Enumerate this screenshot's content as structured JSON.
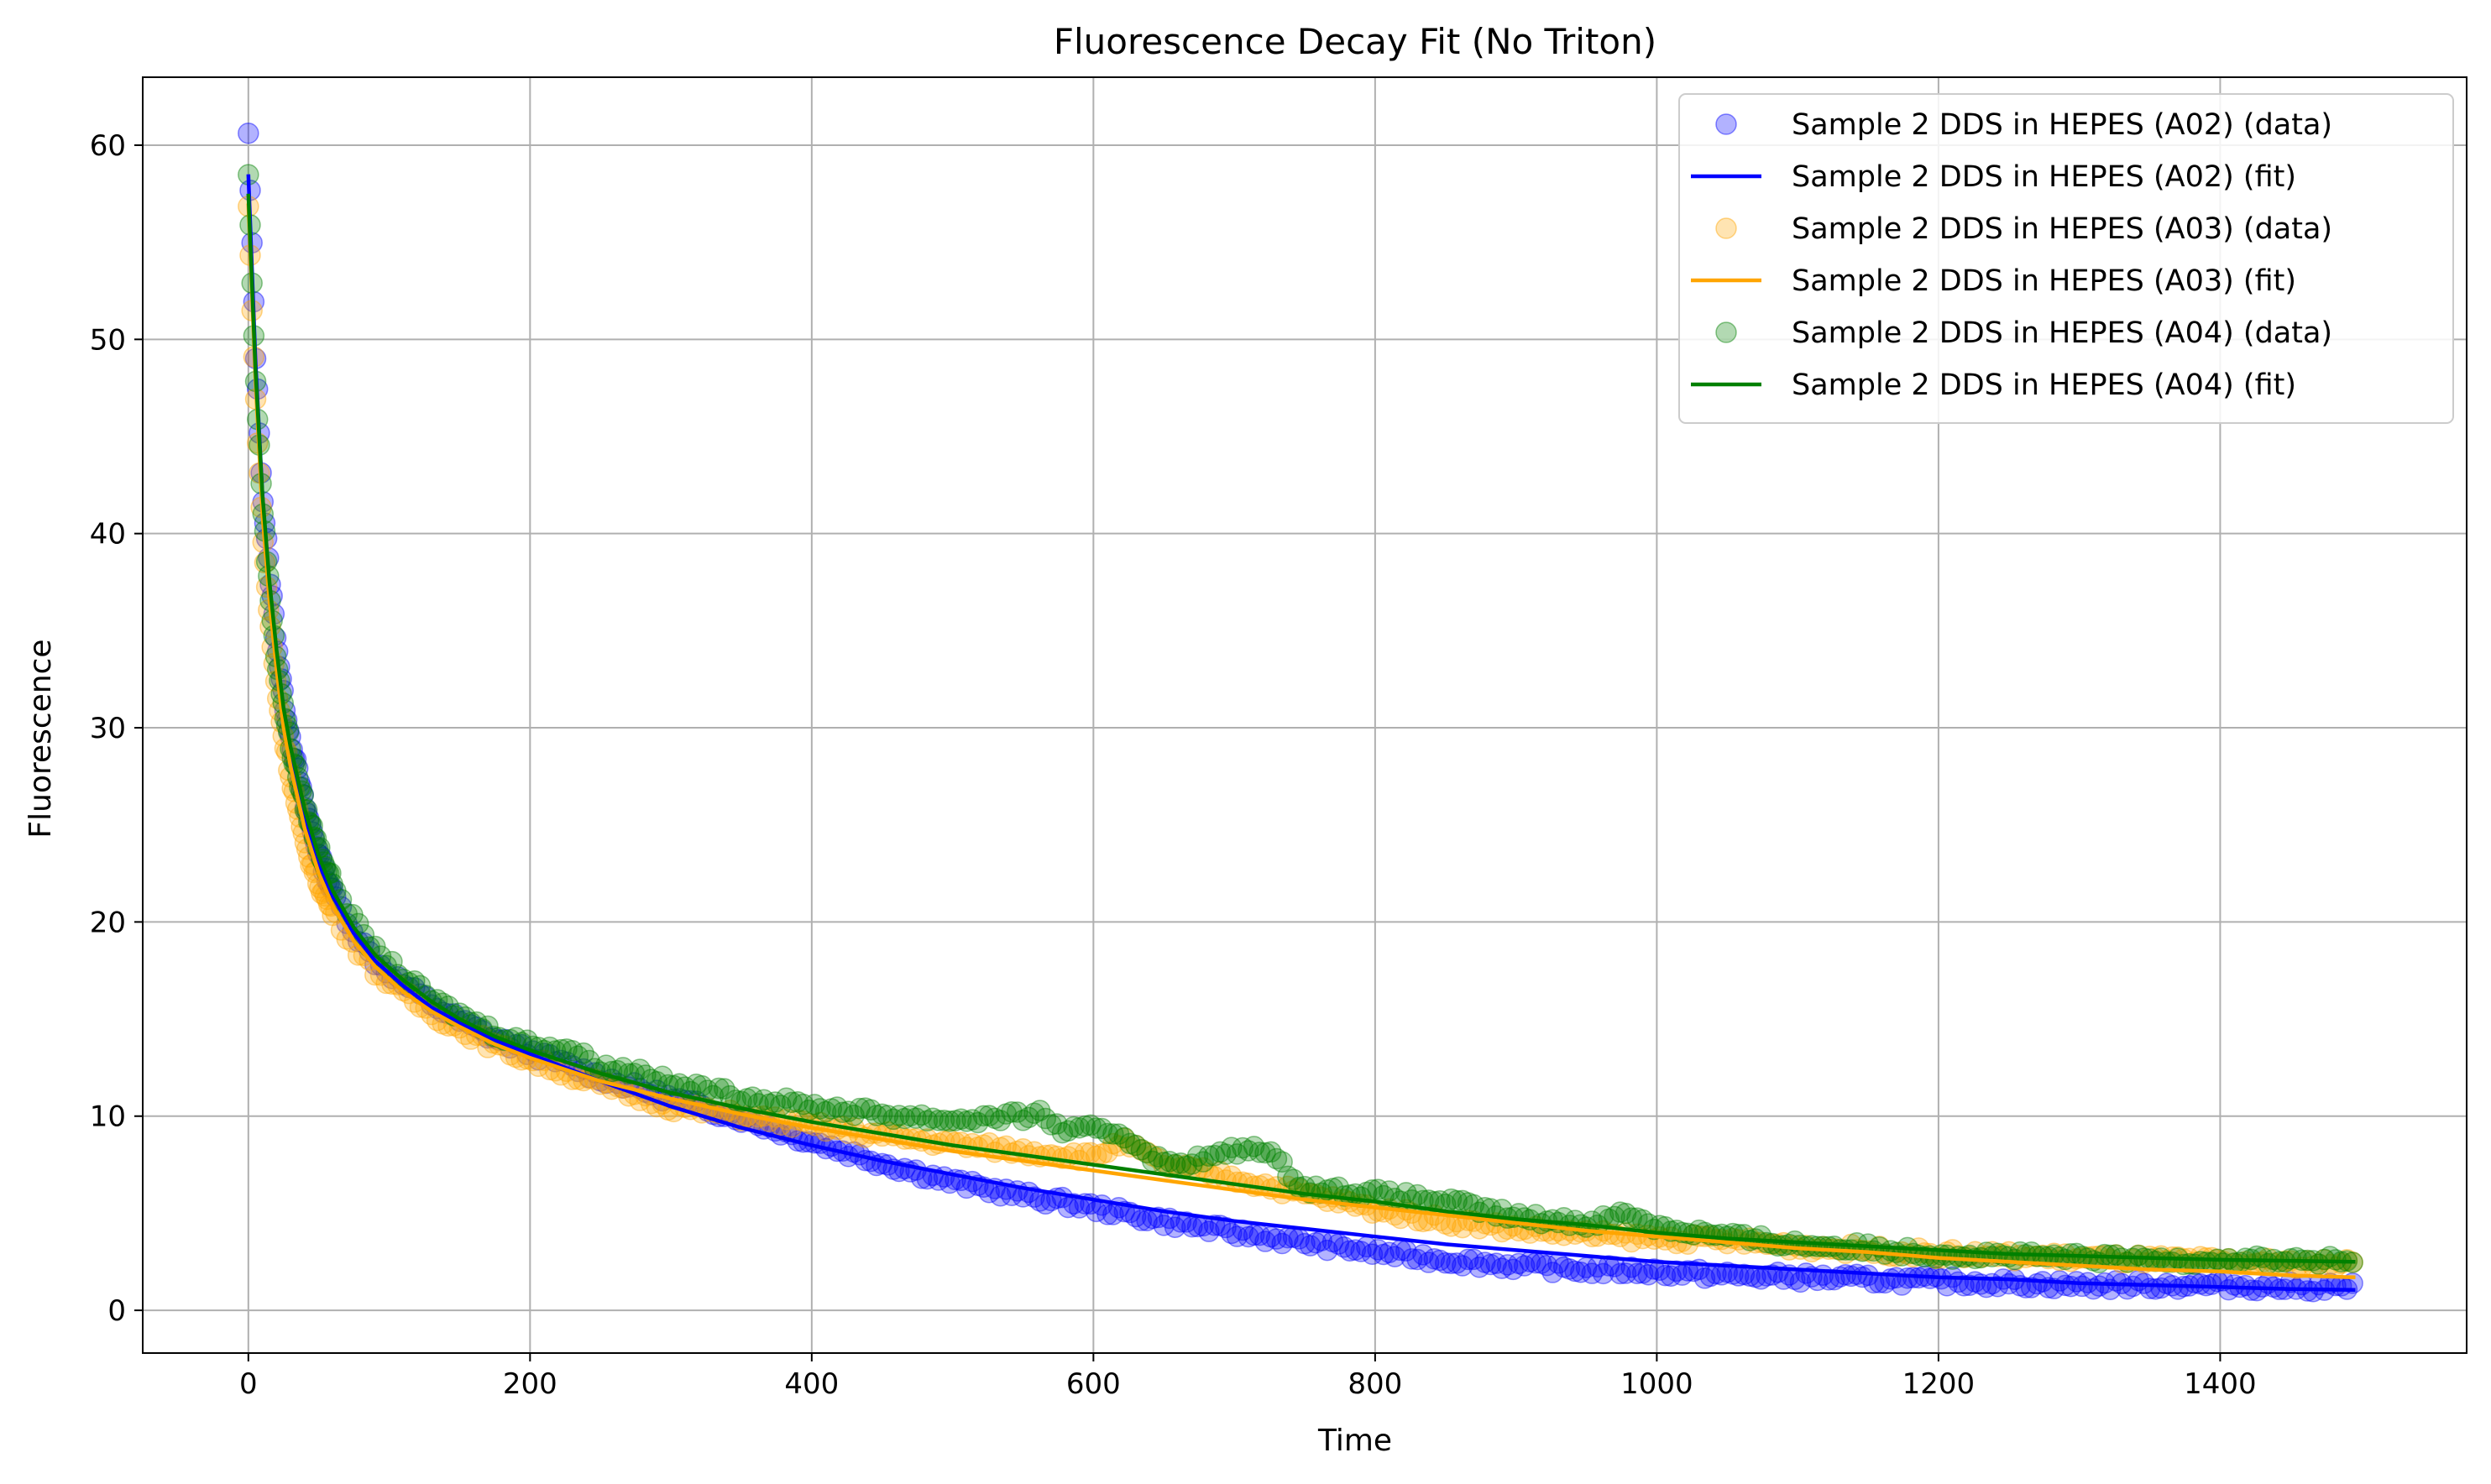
{
  "chart_data": {
    "type": "scatter",
    "title": "Fluorescence Decay Fit (No Triton)",
    "xlabel": "Time",
    "ylabel": "Fluorescence",
    "xlim": [
      -75,
      1575
    ],
    "ylim": [
      -2.2,
      63.5
    ],
    "xticks": [
      0,
      200,
      400,
      600,
      800,
      1000,
      1200,
      1400
    ],
    "yticks": [
      0,
      10,
      20,
      30,
      40,
      50,
      60
    ],
    "grid": true,
    "legend_position": "top-right",
    "x_range": [
      0,
      1496
    ],
    "series": [
      {
        "name": "Sample 2 DDS in HEPES (A02) (data)",
        "kind": "scatter",
        "color": "#0000ff",
        "x": [
          0,
          5,
          10,
          15,
          20,
          25,
          30,
          40,
          50,
          60,
          75,
          90,
          110,
          130,
          150,
          175,
          200,
          250,
          300,
          350,
          400,
          450,
          500,
          550,
          600,
          650,
          700,
          750,
          800,
          850,
          900,
          950,
          1000,
          1050,
          1100,
          1150,
          1200,
          1250,
          1300,
          1350,
          1400,
          1450,
          1496
        ],
        "y": [
          60.5,
          49.5,
          42.0,
          38.0,
          34.5,
          31.5,
          29.5,
          26.0,
          23.5,
          21.5,
          19.5,
          18.0,
          16.8,
          15.8,
          14.9,
          14.0,
          13.3,
          12.0,
          10.9,
          9.9,
          8.7,
          7.6,
          6.6,
          5.9,
          5.3,
          4.6,
          4.0,
          3.5,
          3.0,
          2.6,
          2.3,
          2.1,
          2.0,
          1.8,
          1.7,
          1.6,
          1.5,
          1.4,
          1.3,
          1.3,
          1.3,
          1.2,
          1.2
        ]
      },
      {
        "name": "Sample 2 DDS in HEPES (A02) (fit)",
        "kind": "line",
        "color": "#0000ff",
        "x": [
          0,
          5,
          10,
          15,
          20,
          25,
          30,
          40,
          50,
          60,
          75,
          90,
          110,
          130,
          150,
          175,
          200,
          250,
          300,
          350,
          400,
          450,
          500,
          550,
          600,
          650,
          700,
          750,
          800,
          850,
          900,
          950,
          1000,
          1050,
          1100,
          1150,
          1200,
          1250,
          1300,
          1350,
          1400,
          1450,
          1496
        ],
        "y": [
          58.5,
          49.0,
          42.0,
          37.0,
          33.5,
          30.5,
          28.5,
          25.5,
          23.0,
          21.3,
          19.4,
          18.0,
          16.7,
          15.6,
          14.8,
          13.9,
          13.2,
          11.8,
          10.5,
          9.4,
          8.5,
          7.7,
          7.0,
          6.3,
          5.7,
          5.1,
          4.6,
          4.2,
          3.8,
          3.4,
          3.1,
          2.8,
          2.5,
          2.3,
          2.1,
          1.9,
          1.7,
          1.6,
          1.4,
          1.3,
          1.2,
          1.1,
          1.05
        ]
      },
      {
        "name": "Sample 2 DDS in HEPES (A03) (data)",
        "kind": "scatter",
        "color": "#ffa500",
        "x": [
          0,
          5,
          10,
          15,
          20,
          25,
          30,
          40,
          50,
          60,
          75,
          90,
          110,
          130,
          150,
          175,
          200,
          250,
          300,
          350,
          400,
          450,
          500,
          550,
          600,
          620,
          650,
          700,
          750,
          800,
          850,
          900,
          950,
          1000,
          1050,
          1100,
          1150,
          1200,
          1250,
          1300,
          1350,
          1400,
          1450,
          1496
        ],
        "y": [
          56.8,
          47.0,
          40.0,
          35.5,
          32.0,
          29.5,
          27.5,
          24.0,
          22.0,
          20.5,
          18.8,
          17.5,
          16.3,
          15.3,
          14.5,
          13.6,
          12.9,
          11.6,
          10.5,
          10.0,
          9.5,
          9.0,
          8.6,
          8.2,
          7.9,
          8.7,
          7.5,
          6.8,
          6.0,
          5.2,
          4.6,
          4.2,
          3.9,
          3.7,
          3.6,
          3.3,
          3.1,
          2.9,
          2.8,
          2.7,
          2.6,
          2.5,
          2.4,
          2.4
        ]
      },
      {
        "name": "Sample 2 DDS in HEPES (A03) (fit)",
        "kind": "line",
        "color": "#ffa500",
        "x": [
          0,
          5,
          10,
          15,
          20,
          25,
          30,
          40,
          50,
          60,
          75,
          90,
          110,
          130,
          150,
          175,
          200,
          250,
          300,
          350,
          400,
          450,
          500,
          550,
          600,
          650,
          700,
          750,
          800,
          850,
          900,
          950,
          1000,
          1050,
          1100,
          1150,
          1200,
          1250,
          1300,
          1350,
          1400,
          1450,
          1496
        ],
        "y": [
          57.0,
          48.0,
          41.0,
          36.5,
          33.0,
          30.0,
          28.0,
          24.8,
          22.5,
          20.8,
          19.0,
          17.7,
          16.4,
          15.4,
          14.6,
          13.7,
          13.0,
          11.8,
          10.9,
          10.1,
          9.4,
          8.8,
          8.2,
          7.7,
          7.2,
          6.7,
          6.2,
          5.7,
          5.3,
          4.9,
          4.5,
          4.1,
          3.8,
          3.5,
          3.2,
          3.0,
          2.7,
          2.5,
          2.3,
          2.1,
          2.0,
          1.8,
          1.7
        ]
      },
      {
        "name": "Sample 2 DDS in HEPES (A04) (data)",
        "kind": "scatter",
        "color": "#008000",
        "x": [
          0,
          5,
          10,
          15,
          20,
          25,
          30,
          40,
          50,
          60,
          75,
          90,
          110,
          130,
          150,
          175,
          200,
          230,
          250,
          280,
          300,
          330,
          350,
          400,
          450,
          500,
          550,
          560,
          580,
          600,
          620,
          650,
          680,
          700,
          720,
          750,
          800,
          850,
          900,
          950,
          980,
          1000,
          1050,
          1100,
          1150,
          1200,
          1250,
          1300,
          1350,
          1400,
          1450,
          1496
        ],
        "y": [
          58.5,
          48.0,
          41.5,
          37.0,
          33.5,
          31.0,
          29.0,
          26.0,
          23.8,
          22.0,
          20.0,
          18.5,
          17.2,
          16.0,
          15.2,
          14.3,
          13.7,
          13.4,
          12.5,
          12.3,
          11.6,
          11.3,
          11.0,
          10.5,
          10.1,
          9.8,
          10.0,
          10.2,
          9.2,
          9.3,
          9.1,
          7.5,
          7.8,
          8.2,
          8.4,
          6.3,
          6.0,
          5.6,
          4.8,
          4.5,
          5.0,
          4.3,
          3.8,
          3.4,
          3.2,
          2.9,
          2.8,
          2.7,
          2.6,
          2.6,
          2.6,
          2.5
        ]
      },
      {
        "name": "Sample 2 DDS in HEPES (A04) (fit)",
        "kind": "line",
        "color": "#008000",
        "x": [
          0,
          5,
          10,
          15,
          20,
          25,
          30,
          40,
          50,
          60,
          75,
          90,
          110,
          130,
          150,
          175,
          200,
          250,
          300,
          350,
          400,
          450,
          500,
          550,
          600,
          650,
          700,
          750,
          800,
          850,
          900,
          950,
          1000,
          1050,
          1100,
          1150,
          1200,
          1250,
          1300,
          1350,
          1400,
          1450,
          1496
        ],
        "y": [
          57.5,
          48.5,
          42.0,
          37.5,
          34.0,
          31.0,
          29.0,
          25.8,
          23.4,
          21.6,
          19.7,
          18.3,
          17.0,
          15.9,
          15.0,
          14.1,
          13.4,
          12.2,
          11.2,
          10.4,
          9.7,
          9.1,
          8.5,
          8.0,
          7.5,
          7.0,
          6.5,
          6.0,
          5.6,
          5.1,
          4.7,
          4.4,
          4.0,
          3.7,
          3.5,
          3.3,
          3.1,
          2.9,
          2.8,
          2.7,
          2.6,
          2.55,
          2.5
        ]
      }
    ]
  }
}
